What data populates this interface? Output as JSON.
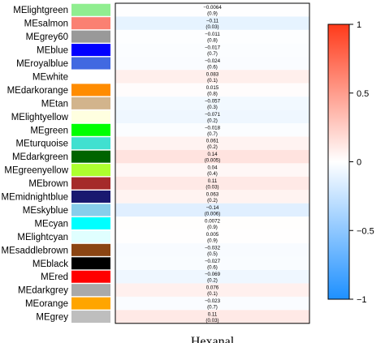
{
  "chart_data": {
    "type": "heatmap",
    "title": "",
    "xlabel": "",
    "ylabel": "",
    "columns": [
      "Hexanal"
    ],
    "rows": [
      {
        "module": "MElightgreen",
        "swatch": "#90ee90",
        "corr": -0.0064,
        "corr_label": "−0.0064",
        "p": 0.9,
        "p_label": "(0.9)"
      },
      {
        "module": "MEsalmon",
        "swatch": "#fa8072",
        "corr": -0.11,
        "corr_label": "−0.11",
        "p": 0.03,
        "p_label": "(0.03)"
      },
      {
        "module": "MEgrey60",
        "swatch": "#999999",
        "corr": -0.011,
        "corr_label": "−0.011",
        "p": 0.8,
        "p_label": "(0.8)"
      },
      {
        "module": "MEblue",
        "swatch": "#0000ff",
        "corr": -0.017,
        "corr_label": "−0.017",
        "p": 0.7,
        "p_label": "(0.7)"
      },
      {
        "module": "MEroyalblue",
        "swatch": "#4169e1",
        "corr": -0.024,
        "corr_label": "−0.024",
        "p": 0.6,
        "p_label": "(0.6)"
      },
      {
        "module": "MEwhite",
        "swatch": "#ffffff",
        "corr": 0.083,
        "corr_label": "0.083",
        "p": 0.1,
        "p_label": "(0.1)"
      },
      {
        "module": "MEdarkorange",
        "swatch": "#ff8c00",
        "corr": 0.015,
        "corr_label": "0.015",
        "p": 0.8,
        "p_label": "(0.8)"
      },
      {
        "module": "MEtan",
        "swatch": "#d2b48c",
        "corr": -0.057,
        "corr_label": "−0.057",
        "p": 0.3,
        "p_label": "(0.3)"
      },
      {
        "module": "MElightyellow",
        "swatch": "#ffffe0",
        "corr": -0.071,
        "corr_label": "−0.071",
        "p": 0.2,
        "p_label": "(0.2)"
      },
      {
        "module": "MEgreen",
        "swatch": "#00ff00",
        "corr": -0.018,
        "corr_label": "−0.018",
        "p": 0.7,
        "p_label": "(0.7)"
      },
      {
        "module": "MEturquoise",
        "swatch": "#40e0d0",
        "corr": 0.061,
        "corr_label": "0.061",
        "p": 0.2,
        "p_label": "(0.2)"
      },
      {
        "module": "MEdarkgreen",
        "swatch": "#006400",
        "corr": 0.14,
        "corr_label": "0.14",
        "p": 0.005,
        "p_label": "(0.005)"
      },
      {
        "module": "MEgreenyellow",
        "swatch": "#adff2f",
        "corr": 0.04,
        "corr_label": "0.04",
        "p": 0.4,
        "p_label": "(0.4)"
      },
      {
        "module": "MEbrown",
        "swatch": "#a52a2a",
        "corr": 0.11,
        "corr_label": "0.11",
        "p": 0.03,
        "p_label": "(0.03)"
      },
      {
        "module": "MEmidnightblue",
        "swatch": "#191970",
        "corr": 0.063,
        "corr_label": "0.063",
        "p": 0.2,
        "p_label": "(0.2)"
      },
      {
        "module": "MEskyblue",
        "swatch": "#87ceeb",
        "corr": -0.14,
        "corr_label": "−0.14",
        "p": 0.006,
        "p_label": "(0.006)"
      },
      {
        "module": "MEcyan",
        "swatch": "#00ffff",
        "corr": 0.0072,
        "corr_label": "0.0072",
        "p": 0.9,
        "p_label": "(0.9)"
      },
      {
        "module": "MElightcyan",
        "swatch": "#e0ffff",
        "corr": 0.005,
        "corr_label": "0.005",
        "p": 0.9,
        "p_label": "(0.9)"
      },
      {
        "module": "MEsaddlebrown",
        "swatch": "#8b4513",
        "corr": -0.032,
        "corr_label": "−0.032",
        "p": 0.5,
        "p_label": "(0.5)"
      },
      {
        "module": "MEblack",
        "swatch": "#000000",
        "corr": -0.027,
        "corr_label": "−0.027",
        "p": 0.6,
        "p_label": "(0.6)"
      },
      {
        "module": "MEred",
        "swatch": "#ff0000",
        "corr": -0.069,
        "corr_label": "−0.069",
        "p": 0.2,
        "p_label": "(0.2)"
      },
      {
        "module": "MEdarkgrey",
        "swatch": "#a9a9a9",
        "corr": 0.076,
        "corr_label": "0.076",
        "p": 0.1,
        "p_label": "(0.1)"
      },
      {
        "module": "MEorange",
        "swatch": "#ffa500",
        "corr": -0.023,
        "corr_label": "−0.023",
        "p": 0.7,
        "p_label": "(0.7)"
      },
      {
        "module": "MEgrey",
        "swatch": "#bebebe",
        "corr": 0.11,
        "corr_label": "0.11",
        "p": 0.03,
        "p_label": "(0.03)"
      }
    ],
    "colorbar": {
      "range": [
        -1,
        1
      ],
      "ticks": [
        1,
        0.5,
        0,
        -0.5,
        -1
      ],
      "tick_labels": [
        "1",
        "0.5",
        "0",
        "−0.5",
        "−1"
      ],
      "low_color": "#1e90ff",
      "mid_color": "#ffffff",
      "high_color": "#ff3a1a"
    },
    "grid": false,
    "legend_position": "right"
  }
}
